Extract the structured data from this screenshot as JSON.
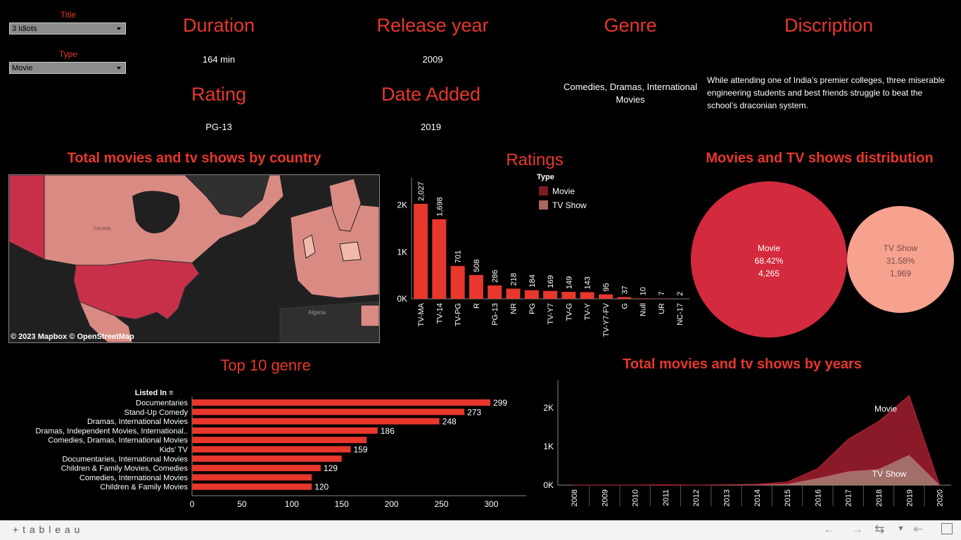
{
  "filters": {
    "title": {
      "label": "Title",
      "value": "3 Idiots"
    },
    "type": {
      "label": "Type",
      "value": "Movie"
    }
  },
  "details": {
    "duration": {
      "label": "Duration",
      "value": "164 min"
    },
    "release_year": {
      "label": "Release year",
      "value": "2009"
    },
    "genre": {
      "label": "Genre",
      "value": "Comedies, Dramas, International Movies"
    },
    "description": {
      "label": "Discription",
      "value": "While attending one of India’s premier colleges, three miserable engineering students and best friends struggle to beat the school’s draconian system."
    },
    "rating": {
      "label": "Rating",
      "value": "PG-13"
    },
    "date_added": {
      "label": "Date Added",
      "value": "2019"
    }
  },
  "map": {
    "title": "Total movies and tv shows by country",
    "attribution": "© 2023 Mapbox  © OpenStreetMap",
    "labels": [
      "Canada",
      "Algeria"
    ],
    "colors": {
      "high": "#c8304a",
      "mid": "#d98b83",
      "low": "#f0b9ac",
      "land": "#2f2f2f",
      "water": "#1f1f1f"
    }
  },
  "legend": {
    "title": "Type",
    "items": [
      {
        "label": "Movie",
        "color": "#7d1a23"
      },
      {
        "label": "TV Show",
        "color": "#a8685d"
      }
    ]
  },
  "colors": {
    "accent": "#e8372c",
    "movie_area": "#8b1a29",
    "tv_area": "#c98a82",
    "bar": "#e8372c",
    "pie_movie": "#d42a3d",
    "pie_tv": "#f6a28f"
  },
  "chart_data": [
    {
      "type": "bar",
      "title": "Ratings",
      "categories": [
        "TV-MA",
        "TV-14",
        "TV-PG",
        "R",
        "PG-13",
        "NR",
        "PG",
        "TV-Y7",
        "TV-G",
        "TV-Y",
        "TV-Y7-FV",
        "G",
        "Null",
        "UR",
        "NC-17"
      ],
      "values": [
        2027,
        1698,
        701,
        508,
        286,
        218,
        184,
        169,
        149,
        143,
        95,
        37,
        10,
        7,
        2
      ],
      "value_labels": [
        "2,027",
        "1,698",
        "701",
        "508",
        "286",
        "218",
        "184",
        "169",
        "149",
        "143",
        "95",
        "37",
        "10",
        "7",
        "2"
      ],
      "yticks": [
        0,
        1000,
        2000
      ],
      "ytick_labels": [
        "0K",
        "1K",
        "2K"
      ],
      "ylim": [
        0,
        2400
      ]
    },
    {
      "type": "pie",
      "title": "Movies and TV shows distribution",
      "slices": [
        {
          "label": "Movie",
          "percent": "68.42%",
          "count": "4,265",
          "value": 4265
        },
        {
          "label": "TV Show",
          "percent": "31.58%",
          "count": "1,969",
          "value": 1969
        }
      ]
    },
    {
      "type": "bar",
      "title": "Top 10 genre",
      "ylabel": "Listed In",
      "categories": [
        "Documentaries",
        "Stand-Up Comedy",
        "Dramas, International Movies",
        "Dramas, Independent Movies, International..",
        "Comedies, Dramas, International Movies",
        "Kids’ TV",
        "Documentaries, International Movies",
        "Children & Family Movies, Comedies",
        "Comedies, International Movies",
        "Children & Family Movies"
      ],
      "values": [
        299,
        273,
        248,
        186,
        175,
        159,
        150,
        129,
        120,
        120
      ],
      "value_labels": [
        "299",
        "273",
        "248",
        "186",
        "",
        "159",
        "",
        "129",
        "",
        "120"
      ],
      "xticks": [
        0,
        50,
        100,
        150,
        200,
        250,
        300
      ],
      "xlim": [
        0,
        335
      ]
    },
    {
      "type": "area",
      "title": "Total movies and tv shows by years",
      "x": [
        "2008",
        "2009",
        "2010",
        "2011",
        "2012",
        "2013",
        "2014",
        "2015",
        "2016",
        "2017",
        "2018",
        "2019",
        "2020"
      ],
      "series": [
        {
          "name": "Movie",
          "values": [
            1,
            2,
            1,
            13,
            3,
            6,
            19,
            56,
            253,
            839,
            1237,
            1546,
            0
          ]
        },
        {
          "name": "TV Show",
          "values": [
            1,
            0,
            1,
            0,
            0,
            5,
            6,
            26,
            176,
            349,
            412,
            775,
            0
          ]
        }
      ],
      "stacked": true,
      "yticks": [
        0,
        1000,
        2000
      ],
      "ytick_labels": [
        "0K",
        "1K",
        "2K"
      ],
      "ylim": [
        0,
        2600
      ]
    }
  ],
  "footer": {
    "brand": "+ t a b l e a u",
    "icons": [
      "undo-icon",
      "redo-icon",
      "revert-icon",
      "dropdown-icon",
      "back-to-start-icon",
      "fullscreen-icon"
    ]
  }
}
